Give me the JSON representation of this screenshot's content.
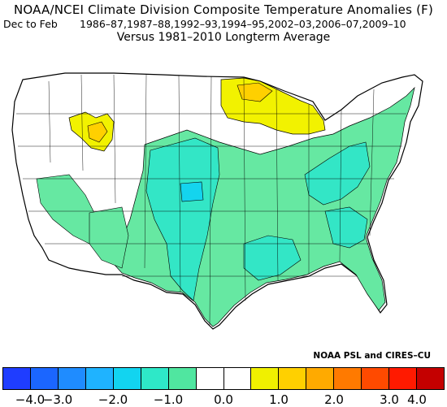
{
  "header": {
    "title": "NOAA/NCEI Climate Division Composite Temperature Anomalies (F)",
    "season": "Dec to Feb",
    "years": "1986–87,1987–88,1992–93,1994–95,2002–03,2006–07,2009–10",
    "baseline": "Versus 1981–2010 Longterm Average"
  },
  "credit": "NOAA PSL and CIRES–CU",
  "legend": {
    "colors": [
      "#1f3dff",
      "#1b66ff",
      "#1f8cff",
      "#1fb3ff",
      "#12d4f0",
      "#2ee8c8",
      "#50e6a0",
      "#ffffff",
      "#ffffff",
      "#f0f000",
      "#ffd000",
      "#ffaa00",
      "#ff7a00",
      "#ff4a00",
      "#ff1a00",
      "#c40000"
    ],
    "tick_labels": [
      "−4.0",
      "−3.0",
      "−2.0",
      "−1.0",
      "0.0",
      "1.0",
      "2.0",
      "3.0",
      "4.0"
    ]
  },
  "map_colors": {
    "cool_light": "#66e8a2",
    "cool_mid": "#33e6c6",
    "cool_dark": "#14d4ee",
    "warm_light": "#f2f200",
    "warm_mid": "#ffd000",
    "neutral": "#ffffff"
  }
}
